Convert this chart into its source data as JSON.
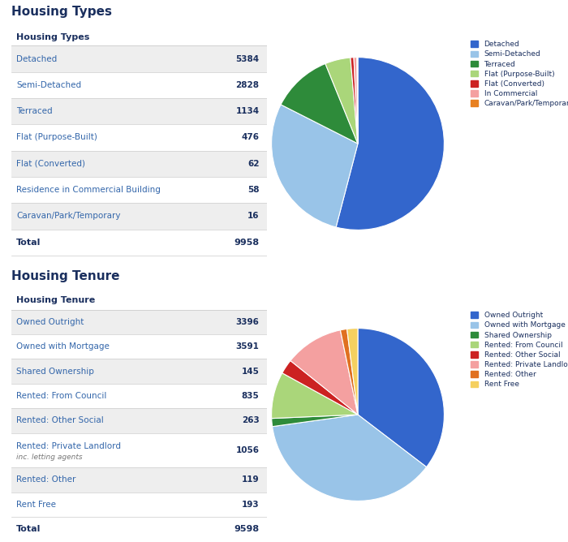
{
  "bg_color": "#ffffff",
  "text_color": "#3366aa",
  "header_color": "#1a2f5e",
  "section_bg_alt": "#eeeeee",
  "divider_color": "#cccccc",
  "housing_types_main_title": "Housing Types",
  "housing_types_subtitle": "Housing Types",
  "housing_types_rows": [
    {
      "label": "Detached",
      "value": "5384",
      "bold_val": false
    },
    {
      "label": "Semi-Detached",
      "value": "2828",
      "bold_val": true
    },
    {
      "label": "Terraced",
      "value": "1134",
      "bold_val": false
    },
    {
      "label": "Flat (Purpose-Built)",
      "value": "476",
      "bold_val": true
    },
    {
      "label": "Flat (Converted)",
      "value": "62",
      "bold_val": false
    },
    {
      "label": "Residence in Commercial Building",
      "value": "58",
      "bold_val": false
    },
    {
      "label": "Caravan/Park/Temporary",
      "value": "16",
      "bold_val": false
    }
  ],
  "housing_types_total_label": "Total",
  "housing_types_total_value": "9958",
  "housing_types_pie_colors": [
    "#3366cc",
    "#99c4e8",
    "#2e8b3a",
    "#aad67a",
    "#cc2222",
    "#f4a0a0",
    "#e88020"
  ],
  "housing_types_pie_labels": [
    "Detached",
    "Semi-Detached",
    "Terraced",
    "Flat (Purpose-Built)",
    "Flat (Converted)",
    "In Commercial",
    "Caravan/Park/Temporary"
  ],
  "housing_types_pie_values": [
    5384,
    2828,
    1134,
    476,
    62,
    58,
    16
  ],
  "housing_tenure_main_title": "Housing Tenure",
  "housing_tenure_subtitle": "Housing Tenure",
  "housing_tenure_rows": [
    {
      "label": "Owned Outright",
      "value": "3396",
      "sub": null
    },
    {
      "label": "Owned with Mortgage",
      "value": "3591",
      "sub": null
    },
    {
      "label": "Shared Ownership",
      "value": "145",
      "sub": null
    },
    {
      "label": "Rented: From Council",
      "value": "835",
      "sub": null
    },
    {
      "label": "Rented: Other Social",
      "value": "263",
      "sub": null
    },
    {
      "label": "Rented: Private Landlord",
      "value": "1056",
      "sub": "inc. letting agents"
    },
    {
      "label": "Rented: Other",
      "value": "119",
      "sub": null
    },
    {
      "label": "Rent Free",
      "value": "193",
      "sub": null
    }
  ],
  "housing_tenure_total_label": "Total",
  "housing_tenure_total_value": "9598",
  "housing_tenure_pie_colors": [
    "#3366cc",
    "#99c4e8",
    "#2e8b3a",
    "#aad67a",
    "#cc2222",
    "#f4a0a0",
    "#e07020",
    "#f5d060"
  ],
  "housing_tenure_pie_labels": [
    "Owned Outright",
    "Owned with Mortgage",
    "Shared Ownership",
    "Rented: From Council",
    "Rented: Other Social",
    "Rented: Private Landlord",
    "Rented: Other",
    "Rent Free"
  ],
  "housing_tenure_pie_values": [
    3396,
    3591,
    145,
    835,
    263,
    1056,
    119,
    193
  ]
}
